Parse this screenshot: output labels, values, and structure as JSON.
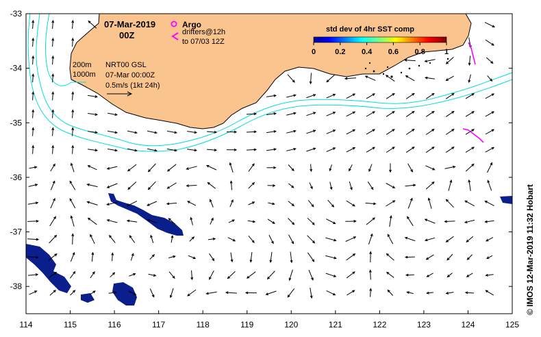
{
  "map": {
    "title": {
      "date": "07-Mar-2019",
      "time": "00Z"
    },
    "legend": {
      "argo_label": "Argo",
      "drifters_line1": "drifters@12h",
      "drifters_line2": "to 07/03 12Z",
      "isobath_200": "200m",
      "isobath_1000": "1000m",
      "model_line1": "NRT00 GSL",
      "model_line2": "07-Mar 00:00Z",
      "scale_label": "0.5m/s (1kt 24h)"
    },
    "colorbar": {
      "title": "std dev of 4hr SST comp",
      "ticks": [
        "0",
        "0.2",
        "0.4",
        "0.6",
        "0.8",
        "1"
      ]
    },
    "axes": {
      "lon_ticks": [
        "114",
        "115",
        "116",
        "117",
        "118",
        "119",
        "120",
        "121",
        "122",
        "123",
        "124",
        "125"
      ],
      "lat_ticks": [
        "-33",
        "-34",
        "-35",
        "-36",
        "-37",
        "-38"
      ],
      "lon_range": [
        114,
        125
      ],
      "lat_range": [
        -38.5,
        -33
      ]
    },
    "credit": "© IMOS 12-Mar-2019 11:32 Hobart",
    "colors": {
      "land": "#f9c48e",
      "isobath": "#00dede",
      "sst_patch": "#0a1e8c",
      "drifter": "#ff00ff"
    }
  }
}
